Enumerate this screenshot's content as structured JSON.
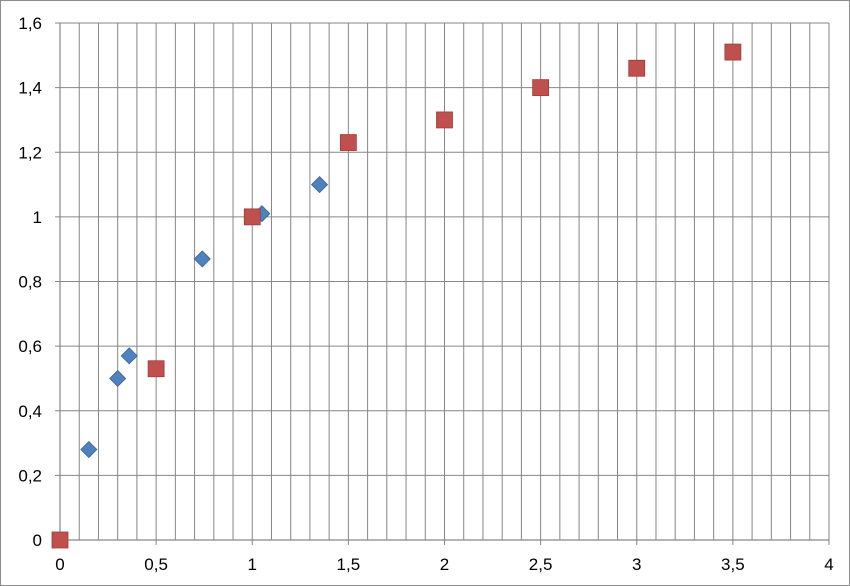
{
  "chart_data": {
    "type": "scatter",
    "title": "",
    "xlabel": "",
    "ylabel": "",
    "xlim": [
      0,
      4
    ],
    "ylim": [
      0,
      1.6
    ],
    "x_major_step": 0.5,
    "x_minor_step": 0.1,
    "y_major_step": 0.2,
    "grid": true,
    "legend": "none",
    "x_tick_labels": [
      "0",
      "0,5",
      "1",
      "1,5",
      "2",
      "2,5",
      "3",
      "3,5",
      "4"
    ],
    "y_tick_labels": [
      "0",
      "0,2",
      "0,4",
      "0,6",
      "0,8",
      "1",
      "1,2",
      "1,4",
      "1,6"
    ],
    "series": [
      {
        "marker": "diamond",
        "color": "#4f81bd",
        "points": [
          {
            "x": 0.15,
            "y": 0.28
          },
          {
            "x": 0.3,
            "y": 0.5
          },
          {
            "x": 0.36,
            "y": 0.57
          },
          {
            "x": 0.74,
            "y": 0.87
          },
          {
            "x": 1.05,
            "y": 1.01
          },
          {
            "x": 1.35,
            "y": 1.1
          }
        ]
      },
      {
        "marker": "square",
        "color": "#c0504d",
        "points": [
          {
            "x": 0,
            "y": 0
          },
          {
            "x": 0.5,
            "y": 0.53
          },
          {
            "x": 1,
            "y": 1
          },
          {
            "x": 1.5,
            "y": 1.23
          },
          {
            "x": 2,
            "y": 1.3
          },
          {
            "x": 2.5,
            "y": 1.4
          },
          {
            "x": 3,
            "y": 1.46
          },
          {
            "x": 3.5,
            "y": 1.51
          }
        ]
      }
    ]
  }
}
